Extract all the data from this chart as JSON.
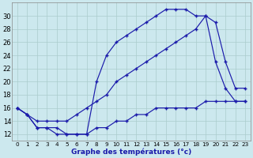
{
  "hours": [
    0,
    1,
    2,
    3,
    4,
    5,
    6,
    7,
    8,
    9,
    10,
    11,
    12,
    13,
    14,
    15,
    16,
    17,
    18,
    19,
    20,
    21,
    22,
    23
  ],
  "curve_upper": [
    16,
    15,
    13,
    13,
    13,
    12,
    12,
    12,
    20,
    24,
    26,
    27,
    28,
    29,
    30,
    31,
    31,
    31,
    30,
    30,
    23,
    19,
    17,
    17
  ],
  "curve_diag": [
    16,
    15,
    14,
    14,
    14,
    14,
    15,
    16,
    17,
    18,
    20,
    21,
    22,
    23,
    24,
    25,
    26,
    27,
    28,
    30,
    29,
    23,
    19,
    19
  ],
  "curve_lower": [
    16,
    15,
    13,
    13,
    12,
    12,
    12,
    12,
    13,
    13,
    14,
    14,
    15,
    15,
    16,
    16,
    16,
    16,
    16,
    17,
    17,
    17,
    17,
    17
  ],
  "line_color": "#1a1aaa",
  "bg_color": "#cce8ee",
  "grid_color": "#aacccc",
  "ylim": [
    11,
    32
  ],
  "yticks": [
    12,
    14,
    16,
    18,
    20,
    22,
    24,
    26,
    28,
    30
  ],
  "xlim": [
    -0.5,
    23.5
  ],
  "figsize": [
    3.2,
    2.0
  ],
  "dpi": 100,
  "xlabel": "Graphe des températures (°c)"
}
